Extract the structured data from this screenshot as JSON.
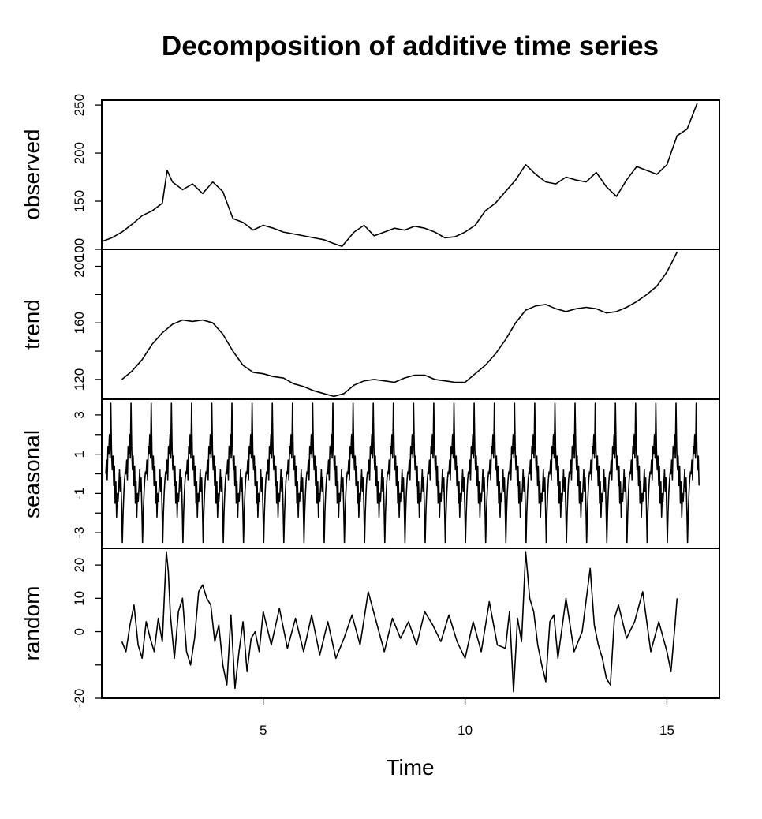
{
  "chart_data": {
    "type": "line",
    "title": "Decomposition of additive time series",
    "xlabel": "Time",
    "xlim": [
      1.0,
      16.3
    ],
    "x_ticks": [
      5,
      10,
      15
    ],
    "x_tick_labels": [
      "5",
      "10",
      "15"
    ],
    "grid": false,
    "panels": [
      {
        "name": "observed",
        "ylabel": "observed",
        "ylim": [
          100,
          255
        ],
        "y_ticks": [
          100,
          150,
          200,
          250
        ],
        "y_tick_labels": [
          "100",
          "150",
          "200",
          "250"
        ],
        "x": [
          1.0,
          1.25,
          1.5,
          1.75,
          2.0,
          2.25,
          2.5,
          2.62,
          2.75,
          3.0,
          3.25,
          3.5,
          3.75,
          4.0,
          4.25,
          4.5,
          4.75,
          5.0,
          5.25,
          5.5,
          5.75,
          6.0,
          6.25,
          6.5,
          6.75,
          6.95,
          7.25,
          7.5,
          7.75,
          8.0,
          8.25,
          8.5,
          8.75,
          9.0,
          9.25,
          9.5,
          9.75,
          10.0,
          10.25,
          10.5,
          10.75,
          11.0,
          11.25,
          11.5,
          11.75,
          12.0,
          12.25,
          12.5,
          12.75,
          13.0,
          13.25,
          13.5,
          13.75,
          14.0,
          14.25,
          14.5,
          14.75,
          15.0,
          15.25,
          15.5,
          15.75
        ],
        "y": [
          108,
          112,
          118,
          126,
          135,
          140,
          148,
          182,
          170,
          162,
          168,
          158,
          170,
          160,
          132,
          128,
          120,
          125,
          122,
          118,
          116,
          114,
          112,
          110,
          106,
          103,
          118,
          125,
          114,
          118,
          122,
          120,
          124,
          122,
          118,
          112,
          113,
          118,
          125,
          140,
          148,
          160,
          172,
          188,
          178,
          170,
          168,
          175,
          172,
          170,
          180,
          165,
          155,
          172,
          186,
          182,
          178,
          188,
          218,
          225,
          252
        ]
      },
      {
        "name": "trend",
        "ylabel": "trend",
        "ylim": [
          106,
          212
        ],
        "y_ticks": [
          120,
          140,
          160,
          180,
          200
        ],
        "y_tick_labels": [
          "120",
          "",
          "160",
          "",
          "200"
        ],
        "x": [
          1.5,
          1.75,
          2.0,
          2.25,
          2.5,
          2.75,
          3.0,
          3.25,
          3.5,
          3.75,
          4.0,
          4.25,
          4.5,
          4.75,
          5.0,
          5.25,
          5.5,
          5.75,
          6.0,
          6.25,
          6.5,
          6.75,
          7.0,
          7.25,
          7.5,
          7.75,
          8.0,
          8.25,
          8.5,
          8.75,
          9.0,
          9.25,
          9.5,
          9.75,
          10.0,
          10.25,
          10.5,
          10.75,
          11.0,
          11.25,
          11.5,
          11.75,
          12.0,
          12.25,
          12.5,
          12.75,
          13.0,
          13.25,
          13.5,
          13.75,
          14.0,
          14.25,
          14.5,
          14.75,
          15.0,
          15.25
        ],
        "y": [
          120,
          126,
          134,
          145,
          153,
          159,
          162,
          161,
          162,
          160,
          152,
          140,
          130,
          125,
          124,
          122,
          121,
          117,
          115,
          112,
          110,
          108,
          110,
          116,
          119,
          120,
          119,
          118,
          121,
          123,
          123,
          120,
          119,
          118,
          118,
          124,
          130,
          138,
          148,
          160,
          169,
          172,
          173,
          170,
          168,
          170,
          171,
          170,
          167,
          168,
          171,
          175,
          180,
          186,
          196,
          210
        ]
      },
      {
        "name": "seasonal",
        "ylabel": "seasonal",
        "ylim": [
          -3.8,
          3.8
        ],
        "y_ticks": [
          -3,
          -2,
          -1,
          0,
          1,
          2,
          3
        ],
        "y_tick_labels": [
          "-3",
          "",
          "-1",
          "",
          "1",
          "",
          "3"
        ],
        "period": 0.5,
        "pattern": [
          0.0,
          0.7,
          -0.3,
          1.4,
          1.0,
          2.0,
          0.8,
          3.6,
          1.2,
          0.2,
          0.9,
          -0.6,
          0.4,
          -1.5,
          -0.4,
          -2.2,
          -1.0,
          -1.4,
          -0.7,
          0.2,
          -0.9,
          -0.2,
          -1.7,
          -3.5,
          -2.0,
          -1.0,
          -0.3,
          0.1
        ],
        "x_start": 1.1,
        "x_end": 15.8
      },
      {
        "name": "random",
        "ylabel": "random",
        "ylim": [
          -20,
          25
        ],
        "y_ticks": [
          -20,
          -10,
          0,
          10,
          20
        ],
        "y_tick_labels": [
          "-20",
          "",
          "0",
          "10",
          "20"
        ],
        "x": [
          1.5,
          1.6,
          1.7,
          1.8,
          1.9,
          2.0,
          2.1,
          2.2,
          2.3,
          2.4,
          2.5,
          2.6,
          2.65,
          2.7,
          2.8,
          2.9,
          3.0,
          3.1,
          3.2,
          3.3,
          3.4,
          3.5,
          3.6,
          3.7,
          3.8,
          3.9,
          4.0,
          4.1,
          4.2,
          4.3,
          4.4,
          4.5,
          4.6,
          4.7,
          4.8,
          4.9,
          5.0,
          5.2,
          5.4,
          5.6,
          5.8,
          6.0,
          6.2,
          6.4,
          6.6,
          6.8,
          7.0,
          7.2,
          7.4,
          7.6,
          7.8,
          8.0,
          8.2,
          8.4,
          8.6,
          8.8,
          9.0,
          9.2,
          9.4,
          9.6,
          9.8,
          10.0,
          10.2,
          10.4,
          10.6,
          10.8,
          11.0,
          11.1,
          11.2,
          11.3,
          11.4,
          11.5,
          11.6,
          11.7,
          11.8,
          11.9,
          12.0,
          12.1,
          12.2,
          12.3,
          12.5,
          12.7,
          12.9,
          13.1,
          13.2,
          13.3,
          13.4,
          13.5,
          13.6,
          13.7,
          13.8,
          14.0,
          14.2,
          14.4,
          14.6,
          14.8,
          15.0,
          15.1,
          15.2,
          15.25
        ],
        "y": [
          -3,
          -6,
          2,
          8,
          -4,
          -8,
          3,
          -2,
          -6,
          4,
          -3,
          24,
          18,
          5,
          -8,
          6,
          10,
          -6,
          -10,
          -2,
          12,
          14,
          10,
          8,
          -3,
          2,
          -10,
          -16,
          5,
          -17,
          -6,
          3,
          -12,
          -2,
          0,
          -6,
          6,
          -4,
          7,
          -5,
          4,
          -6,
          5,
          -7,
          3,
          -8,
          -2,
          5,
          -4,
          12,
          3,
          -6,
          4,
          -2,
          3,
          -4,
          6,
          2,
          -3,
          5,
          -3,
          -8,
          3,
          -6,
          9,
          -4,
          -5,
          6,
          -18,
          4,
          -3,
          24,
          10,
          6,
          -4,
          -10,
          -15,
          3,
          5,
          -8,
          10,
          -6,
          0,
          19,
          2,
          -4,
          -8,
          -14,
          -16,
          4,
          8,
          -2,
          3,
          12,
          -6,
          3,
          -6,
          -12,
          2,
          10
        ]
      }
    ]
  }
}
